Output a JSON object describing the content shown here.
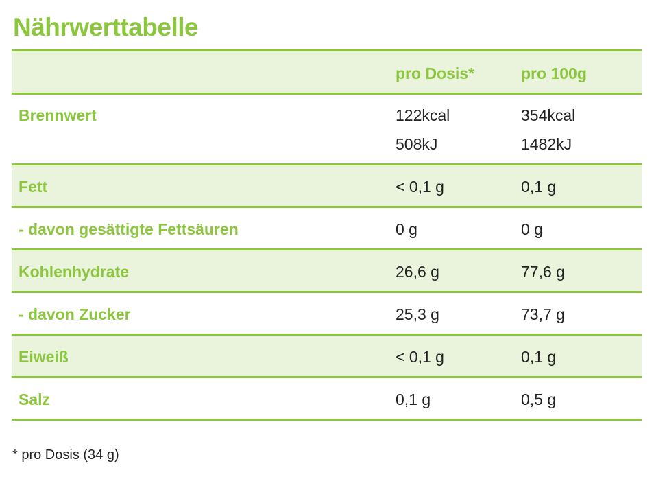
{
  "title": "Nährwerttabelle",
  "header": {
    "col1": "pro Dosis*",
    "col2": "pro 100g"
  },
  "brennwert": {
    "label": "Brennwert",
    "dose_kcal": "122kcal",
    "dose_kj": "508kJ",
    "per100_kcal": "354kcal",
    "per100_kj": "1482kJ"
  },
  "rows": [
    {
      "label": "Fett",
      "dose": "< 0,1 g",
      "per100": "0,1 g"
    },
    {
      "label": "- davon gesättigte Fettsäuren",
      "dose": "0 g",
      "per100": "0 g"
    },
    {
      "label": "Kohlenhydrate",
      "dose": "26,6 g",
      "per100": "77,6 g"
    },
    {
      "label": "- davon Zucker",
      "dose": "25,3 g",
      "per100": "73,7 g"
    },
    {
      "label": "Eiweiß",
      "dose": "< 0,1 g",
      "per100": "0,1 g"
    },
    {
      "label": "Salz",
      "dose": "0,1 g",
      "per100": "0,5 g"
    }
  ],
  "footnote": "* pro Dosis (34 g)",
  "colors": {
    "accent": "#8cc63f",
    "row_shade": "#eaf4dc",
    "text": "#222222"
  }
}
